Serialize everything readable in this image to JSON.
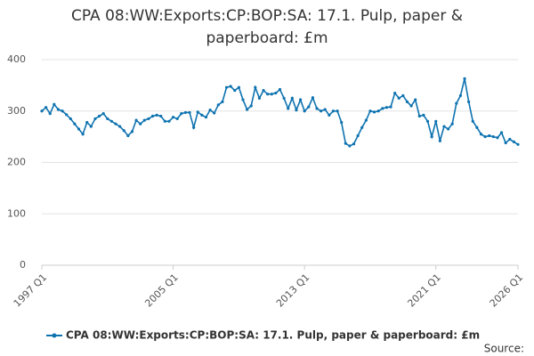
{
  "chart_data": {
    "type": "line",
    "title": "CPA 08:WW:Exports:CP:BOP:SA: 17.1. Pulp, paper & paperboard: £m",
    "categories": [
      "1997 Q1",
      null,
      null,
      null,
      null,
      null,
      null,
      null,
      null,
      null,
      null,
      null,
      null,
      null,
      null,
      null,
      null,
      null,
      null,
      null,
      null,
      null,
      null,
      null,
      null,
      null,
      null,
      null,
      null,
      null,
      null,
      null,
      "2005 Q1",
      null,
      null,
      null,
      null,
      null,
      null,
      null,
      null,
      null,
      null,
      null,
      null,
      null,
      null,
      null,
      null,
      null,
      null,
      null,
      null,
      null,
      null,
      null,
      null,
      null,
      null,
      null,
      null,
      null,
      null,
      null,
      "2013 Q1",
      null,
      null,
      null,
      null,
      null,
      null,
      null,
      null,
      null,
      null,
      null,
      null,
      null,
      null,
      null,
      null,
      null,
      null,
      null,
      null,
      null,
      null,
      null,
      null,
      null,
      null,
      null,
      null,
      null,
      null,
      null,
      "2021 Q1",
      null,
      null,
      null,
      null,
      null,
      null,
      null,
      null,
      null,
      null,
      null,
      null,
      null,
      null,
      null,
      null,
      null,
      null,
      null,
      "2026 Q1"
    ],
    "series": [
      {
        "name": "CPA 08:WW:Exports:CP:BOP:SA: 17.1. Pulp, paper & paperboard: £m",
        "color": "#0e73b0",
        "values": [
          300,
          307,
          295,
          313,
          303,
          300,
          293,
          285,
          275,
          265,
          255,
          278,
          270,
          285,
          290,
          295,
          285,
          280,
          275,
          270,
          262,
          252,
          260,
          282,
          275,
          282,
          285,
          290,
          292,
          290,
          280,
          280,
          288,
          285,
          295,
          297,
          297,
          268,
          298,
          292,
          288,
          302,
          296,
          312,
          318,
          346,
          348,
          340,
          346,
          322,
          303,
          310,
          346,
          325,
          340,
          333,
          333,
          335,
          342,
          325,
          305,
          325,
          302,
          322,
          300,
          308,
          326,
          305,
          300,
          303,
          292,
          300,
          300,
          278,
          237,
          232,
          236,
          252,
          268,
          282,
          300,
          298,
          300,
          305,
          307,
          308,
          335,
          325,
          330,
          318,
          310,
          322,
          290,
          292,
          280,
          250,
          280,
          242,
          270,
          265,
          275,
          315,
          330,
          363,
          318,
          280,
          268,
          255,
          250,
          252,
          250,
          248,
          258,
          238,
          245,
          240,
          235
        ]
      }
    ],
    "ylim": [
      0,
      400
    ],
    "yticks": [
      0,
      100,
      200,
      300,
      400
    ],
    "grid": true
  },
  "source": "Source:"
}
